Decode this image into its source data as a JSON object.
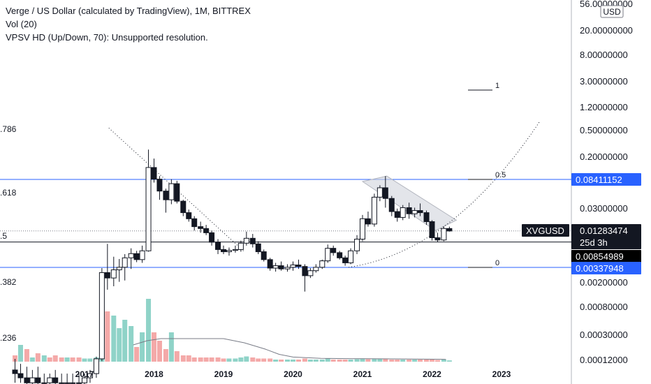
{
  "legend": {
    "title": "Verge / US Dollar (calculated by TradingView), 1M, BITTREX",
    "vol": "Vol (20)",
    "vpsv": "VPSV HD (Up/Down, 70): Unsupported resolution."
  },
  "chart_data": {
    "type": "candlestick",
    "symbol": "XVGUSD",
    "timeframe": "1M",
    "exchange": "BITTREX",
    "currency": "USD",
    "y_scale": "log",
    "ylim": [
      0.00012,
      60
    ],
    "x_ticks": [
      "2017",
      "2018",
      "2019",
      "2020",
      "2021",
      "2022",
      "2023"
    ],
    "y_ticks": [
      "56.00000000",
      "20.00000000",
      "8.00000000",
      "3.00000000",
      "1.20000000",
      "0.50000000",
      "0.20000000",
      "0.03000000",
      "0.00200000",
      "0.00080000",
      "0.00030000",
      "0.00012000"
    ],
    "price_labels": [
      {
        "text": "0.08411152",
        "style": "blue"
      },
      {
        "text": "XVGUSD",
        "style": "dark"
      },
      {
        "text": "0.01283474",
        "style": "dark"
      },
      {
        "text": "25d 3h",
        "style": "dark"
      },
      {
        "text": "0.00854989",
        "style": "black"
      },
      {
        "text": "0.00337948",
        "style": "blue"
      }
    ],
    "fib_left_labels": [
      ".786",
      ".618",
      ".5",
      ".382",
      ".236"
    ],
    "fib_right_labels": [
      "1",
      "0.5",
      "0"
    ],
    "candles": [
      {
        "t": 2016.0,
        "o": 8e-05,
        "h": 0.00012,
        "l": 5e-05,
        "c": 7e-05
      },
      {
        "t": 2016.08,
        "o": 7e-05,
        "h": 0.0001,
        "l": 5e-05,
        "c": 6e-05
      },
      {
        "t": 2016.17,
        "o": 6e-05,
        "h": 9e-05,
        "l": 4e-05,
        "c": 5e-05
      },
      {
        "t": 2016.25,
        "o": 5e-05,
        "h": 8e-05,
        "l": 4e-05,
        "c": 6e-05
      },
      {
        "t": 2016.33,
        "o": 6e-05,
        "h": 9e-05,
        "l": 4e-05,
        "c": 5e-05
      },
      {
        "t": 2016.42,
        "o": 5e-05,
        "h": 7e-05,
        "l": 4e-05,
        "c": 5e-05
      },
      {
        "t": 2016.5,
        "o": 5e-05,
        "h": 7e-05,
        "l": 4e-05,
        "c": 6e-05
      },
      {
        "t": 2016.58,
        "o": 6e-05,
        "h": 8e-05,
        "l": 4e-05,
        "c": 5e-05
      },
      {
        "t": 2016.67,
        "o": 5e-05,
        "h": 7e-05,
        "l": 4e-05,
        "c": 5e-05
      },
      {
        "t": 2016.75,
        "o": 5e-05,
        "h": 7e-05,
        "l": 4e-05,
        "c": 5e-05
      },
      {
        "t": 2016.83,
        "o": 5e-05,
        "h": 7e-05,
        "l": 4e-05,
        "c": 5e-05
      },
      {
        "t": 2016.92,
        "o": 5e-05,
        "h": 7e-05,
        "l": 4e-05,
        "c": 5e-05
      },
      {
        "t": 2017.0,
        "o": 5e-05,
        "h": 7e-05,
        "l": 4e-05,
        "c": 6e-05
      },
      {
        "t": 2017.08,
        "o": 6e-05,
        "h": 8e-05,
        "l": 5e-05,
        "c": 7e-05
      },
      {
        "t": 2017.17,
        "o": 7e-05,
        "h": 0.00013,
        "l": 6e-05,
        "c": 0.00012
      },
      {
        "t": 2017.25,
        "o": 0.00012,
        "h": 0.0033,
        "l": 0.00011,
        "c": 0.0028
      },
      {
        "t": 2017.33,
        "o": 0.0028,
        "h": 0.008,
        "l": 0.0015,
        "c": 0.0023
      },
      {
        "t": 2017.42,
        "o": 0.0023,
        "h": 0.005,
        "l": 0.0017,
        "c": 0.0031
      },
      {
        "t": 2017.5,
        "o": 0.0031,
        "h": 0.0046,
        "l": 0.002,
        "c": 0.0034
      },
      {
        "t": 2017.58,
        "o": 0.0034,
        "h": 0.0055,
        "l": 0.0021,
        "c": 0.0048
      },
      {
        "t": 2017.67,
        "o": 0.0048,
        "h": 0.0068,
        "l": 0.0032,
        "c": 0.0056
      },
      {
        "t": 2017.75,
        "o": 0.0056,
        "h": 0.0062,
        "l": 0.0041,
        "c": 0.0045
      },
      {
        "t": 2017.83,
        "o": 0.0045,
        "h": 0.0075,
        "l": 0.004,
        "c": 0.0062
      },
      {
        "t": 2017.92,
        "o": 0.0062,
        "h": 0.25,
        "l": 0.006,
        "c": 0.13
      },
      {
        "t": 2018.0,
        "o": 0.13,
        "h": 0.18,
        "l": 0.075,
        "c": 0.085
      },
      {
        "t": 2018.08,
        "o": 0.085,
        "h": 0.095,
        "l": 0.04,
        "c": 0.055
      },
      {
        "t": 2018.17,
        "o": 0.055,
        "h": 0.06,
        "l": 0.025,
        "c": 0.04
      },
      {
        "t": 2018.25,
        "o": 0.04,
        "h": 0.085,
        "l": 0.034,
        "c": 0.072
      },
      {
        "t": 2018.33,
        "o": 0.072,
        "h": 0.08,
        "l": 0.035,
        "c": 0.038
      },
      {
        "t": 2018.42,
        "o": 0.038,
        "h": 0.04,
        "l": 0.022,
        "c": 0.025
      },
      {
        "t": 2018.5,
        "o": 0.025,
        "h": 0.028,
        "l": 0.018,
        "c": 0.02
      },
      {
        "t": 2018.58,
        "o": 0.02,
        "h": 0.022,
        "l": 0.013,
        "c": 0.015
      },
      {
        "t": 2018.67,
        "o": 0.015,
        "h": 0.018,
        "l": 0.012,
        "c": 0.014
      },
      {
        "t": 2018.75,
        "o": 0.014,
        "h": 0.016,
        "l": 0.011,
        "c": 0.012
      },
      {
        "t": 2018.83,
        "o": 0.012,
        "h": 0.013,
        "l": 0.0075,
        "c": 0.0085
      },
      {
        "t": 2018.92,
        "o": 0.0085,
        "h": 0.0095,
        "l": 0.0055,
        "c": 0.0065
      },
      {
        "t": 2019.0,
        "o": 0.0065,
        "h": 0.0075,
        "l": 0.0055,
        "c": 0.006
      },
      {
        "t": 2019.08,
        "o": 0.006,
        "h": 0.007,
        "l": 0.0052,
        "c": 0.0063
      },
      {
        "t": 2019.17,
        "o": 0.0063,
        "h": 0.0075,
        "l": 0.0058,
        "c": 0.0065
      },
      {
        "t": 2019.25,
        "o": 0.0065,
        "h": 0.009,
        "l": 0.006,
        "c": 0.0082
      },
      {
        "t": 2019.33,
        "o": 0.0082,
        "h": 0.0125,
        "l": 0.0075,
        "c": 0.0098
      },
      {
        "t": 2019.42,
        "o": 0.0098,
        "h": 0.0115,
        "l": 0.007,
        "c": 0.008
      },
      {
        "t": 2019.5,
        "o": 0.008,
        "h": 0.0088,
        "l": 0.0055,
        "c": 0.006
      },
      {
        "t": 2019.58,
        "o": 0.006,
        "h": 0.0065,
        "l": 0.0042,
        "c": 0.0045
      },
      {
        "t": 2019.67,
        "o": 0.0045,
        "h": 0.0048,
        "l": 0.003,
        "c": 0.0033
      },
      {
        "t": 2019.75,
        "o": 0.0033,
        "h": 0.004,
        "l": 0.0029,
        "c": 0.0036
      },
      {
        "t": 2019.83,
        "o": 0.0036,
        "h": 0.0042,
        "l": 0.003,
        "c": 0.0032
      },
      {
        "t": 2019.92,
        "o": 0.0032,
        "h": 0.0038,
        "l": 0.0029,
        "c": 0.0034
      },
      {
        "t": 2020.0,
        "o": 0.0034,
        "h": 0.0042,
        "l": 0.003,
        "c": 0.0037
      },
      {
        "t": 2020.08,
        "o": 0.0037,
        "h": 0.0045,
        "l": 0.0032,
        "c": 0.0035
      },
      {
        "t": 2020.17,
        "o": 0.0035,
        "h": 0.0038,
        "l": 0.0014,
        "c": 0.0025
      },
      {
        "t": 2020.25,
        "o": 0.0025,
        "h": 0.0033,
        "l": 0.0023,
        "c": 0.003
      },
      {
        "t": 2020.33,
        "o": 0.003,
        "h": 0.0038,
        "l": 0.0028,
        "c": 0.0034
      },
      {
        "t": 2020.42,
        "o": 0.0034,
        "h": 0.0045,
        "l": 0.0032,
        "c": 0.0043
      },
      {
        "t": 2020.5,
        "o": 0.0043,
        "h": 0.0078,
        "l": 0.004,
        "c": 0.0068
      },
      {
        "t": 2020.58,
        "o": 0.0068,
        "h": 0.0075,
        "l": 0.0052,
        "c": 0.0058
      },
      {
        "t": 2020.67,
        "o": 0.0058,
        "h": 0.0062,
        "l": 0.0045,
        "c": 0.0048
      },
      {
        "t": 2020.75,
        "o": 0.0048,
        "h": 0.0052,
        "l": 0.0036,
        "c": 0.004
      },
      {
        "t": 2020.83,
        "o": 0.004,
        "h": 0.0068,
        "l": 0.0038,
        "c": 0.0062
      },
      {
        "t": 2020.92,
        "o": 0.0062,
        "h": 0.011,
        "l": 0.0055,
        "c": 0.0095
      },
      {
        "t": 2021.0,
        "o": 0.0095,
        "h": 0.023,
        "l": 0.0088,
        "c": 0.02
      },
      {
        "t": 2021.08,
        "o": 0.02,
        "h": 0.026,
        "l": 0.015,
        "c": 0.0165
      },
      {
        "t": 2021.17,
        "o": 0.0165,
        "h": 0.05,
        "l": 0.015,
        "c": 0.044
      },
      {
        "t": 2021.25,
        "o": 0.044,
        "h": 0.068,
        "l": 0.038,
        "c": 0.062
      },
      {
        "t": 2021.33,
        "o": 0.062,
        "h": 0.095,
        "l": 0.03,
        "c": 0.042
      },
      {
        "t": 2021.42,
        "o": 0.042,
        "h": 0.046,
        "l": 0.022,
        "c": 0.026
      },
      {
        "t": 2021.5,
        "o": 0.026,
        "h": 0.029,
        "l": 0.018,
        "c": 0.021
      },
      {
        "t": 2021.58,
        "o": 0.021,
        "h": 0.033,
        "l": 0.019,
        "c": 0.03
      },
      {
        "t": 2021.67,
        "o": 0.03,
        "h": 0.036,
        "l": 0.02,
        "c": 0.024
      },
      {
        "t": 2021.75,
        "o": 0.024,
        "h": 0.03,
        "l": 0.021,
        "c": 0.027
      },
      {
        "t": 2021.83,
        "o": 0.027,
        "h": 0.035,
        "l": 0.022,
        "c": 0.025
      },
      {
        "t": 2021.92,
        "o": 0.025,
        "h": 0.027,
        "l": 0.016,
        "c": 0.018
      },
      {
        "t": 2022.0,
        "o": 0.018,
        "h": 0.019,
        "l": 0.009,
        "c": 0.01
      },
      {
        "t": 2022.08,
        "o": 0.01,
        "h": 0.012,
        "l": 0.0085,
        "c": 0.0092
      },
      {
        "t": 2022.17,
        "o": 0.0092,
        "h": 0.015,
        "l": 0.0088,
        "c": 0.014
      },
      {
        "t": 2022.25,
        "o": 0.014,
        "h": 0.015,
        "l": 0.0125,
        "c": 0.0128
      }
    ],
    "volume": [
      {
        "t": 2016.0,
        "v": 3,
        "up": false
      },
      {
        "t": 2016.08,
        "v": 8,
        "up": true
      },
      {
        "t": 2016.17,
        "v": 6,
        "up": false
      },
      {
        "t": 2016.25,
        "v": 2,
        "up": true
      },
      {
        "t": 2016.33,
        "v": 4,
        "up": false
      },
      {
        "t": 2016.42,
        "v": 3,
        "up": true
      },
      {
        "t": 2016.5,
        "v": 2,
        "up": false
      },
      {
        "t": 2016.58,
        "v": 3,
        "up": false
      },
      {
        "t": 2016.67,
        "v": 2,
        "up": false
      },
      {
        "t": 2016.75,
        "v": 2,
        "up": true
      },
      {
        "t": 2016.83,
        "v": 2,
        "up": false
      },
      {
        "t": 2016.92,
        "v": 2,
        "up": false
      },
      {
        "t": 2017.0,
        "v": 1.5,
        "up": true
      },
      {
        "t": 2017.08,
        "v": 1.5,
        "up": true
      },
      {
        "t": 2017.17,
        "v": 2,
        "up": true
      },
      {
        "t": 2017.25,
        "v": 6,
        "up": true
      },
      {
        "t": 2017.33,
        "v": 24,
        "up": false
      },
      {
        "t": 2017.42,
        "v": 22,
        "up": true
      },
      {
        "t": 2017.5,
        "v": 16,
        "up": true
      },
      {
        "t": 2017.58,
        "v": 20,
        "up": true
      },
      {
        "t": 2017.67,
        "v": 17,
        "up": true
      },
      {
        "t": 2017.75,
        "v": 7,
        "up": false
      },
      {
        "t": 2017.83,
        "v": 14,
        "up": true
      },
      {
        "t": 2017.92,
        "v": 30,
        "up": true
      },
      {
        "t": 2018.0,
        "v": 14,
        "up": false
      },
      {
        "t": 2018.08,
        "v": 10,
        "up": false
      },
      {
        "t": 2018.17,
        "v": 6,
        "up": false
      },
      {
        "t": 2018.25,
        "v": 14,
        "up": true
      },
      {
        "t": 2018.33,
        "v": 5,
        "up": false
      },
      {
        "t": 2018.42,
        "v": 3,
        "up": false
      },
      {
        "t": 2018.5,
        "v": 3,
        "up": false
      },
      {
        "t": 2018.58,
        "v": 2,
        "up": false
      },
      {
        "t": 2018.67,
        "v": 2,
        "up": false
      },
      {
        "t": 2018.75,
        "v": 2,
        "up": false
      },
      {
        "t": 2018.83,
        "v": 2,
        "up": false
      },
      {
        "t": 2018.92,
        "v": 2,
        "up": false
      },
      {
        "t": 2019.0,
        "v": 1.5,
        "up": false
      },
      {
        "t": 2019.08,
        "v": 1.5,
        "up": true
      },
      {
        "t": 2019.17,
        "v": 1.5,
        "up": true
      },
      {
        "t": 2019.25,
        "v": 2,
        "up": true
      },
      {
        "t": 2019.33,
        "v": 2.5,
        "up": true
      },
      {
        "t": 2019.42,
        "v": 2,
        "up": false
      },
      {
        "t": 2019.5,
        "v": 1.5,
        "up": false
      },
      {
        "t": 2019.58,
        "v": 1.5,
        "up": false
      },
      {
        "t": 2019.67,
        "v": 1.5,
        "up": false
      },
      {
        "t": 2019.75,
        "v": 1,
        "up": true
      },
      {
        "t": 2019.83,
        "v": 1,
        "up": false
      },
      {
        "t": 2019.92,
        "v": 1,
        "up": true
      },
      {
        "t": 2020.0,
        "v": 1,
        "up": true
      },
      {
        "t": 2020.08,
        "v": 1,
        "up": false
      },
      {
        "t": 2020.17,
        "v": 1.5,
        "up": false
      },
      {
        "t": 2020.25,
        "v": 1,
        "up": true
      },
      {
        "t": 2020.33,
        "v": 1,
        "up": true
      },
      {
        "t": 2020.42,
        "v": 1,
        "up": true
      },
      {
        "t": 2020.5,
        "v": 1.5,
        "up": true
      },
      {
        "t": 2020.58,
        "v": 1,
        "up": false
      },
      {
        "t": 2020.67,
        "v": 1,
        "up": false
      },
      {
        "t": 2020.75,
        "v": 1,
        "up": false
      },
      {
        "t": 2020.83,
        "v": 1,
        "up": true
      },
      {
        "t": 2020.92,
        "v": 1.2,
        "up": true
      },
      {
        "t": 2021.0,
        "v": 1.5,
        "up": true
      },
      {
        "t": 2021.08,
        "v": 1.2,
        "up": false
      },
      {
        "t": 2021.17,
        "v": 1.5,
        "up": true
      },
      {
        "t": 2021.25,
        "v": 1.5,
        "up": true
      },
      {
        "t": 2021.33,
        "v": 1.5,
        "up": false
      },
      {
        "t": 2021.42,
        "v": 1,
        "up": false
      },
      {
        "t": 2021.5,
        "v": 1,
        "up": false
      },
      {
        "t": 2021.58,
        "v": 1,
        "up": true
      },
      {
        "t": 2021.67,
        "v": 1,
        "up": false
      },
      {
        "t": 2021.75,
        "v": 1,
        "up": true
      },
      {
        "t": 2021.83,
        "v": 1,
        "up": false
      },
      {
        "t": 2021.92,
        "v": 1,
        "up": false
      },
      {
        "t": 2022.0,
        "v": 1,
        "up": false
      },
      {
        "t": 2022.08,
        "v": 0.8,
        "up": false
      },
      {
        "t": 2022.17,
        "v": 1,
        "up": true
      },
      {
        "t": 2022.25,
        "v": 0.6,
        "up": true
      }
    ],
    "volume_ma": [
      {
        "t": 2017.7,
        "v": 8
      },
      {
        "t": 2017.9,
        "v": 10
      },
      {
        "t": 2018.1,
        "v": 11
      },
      {
        "t": 2018.4,
        "v": 11
      },
      {
        "t": 2018.8,
        "v": 11
      },
      {
        "t": 2019.0,
        "v": 11
      },
      {
        "t": 2019.3,
        "v": 9
      },
      {
        "t": 2019.6,
        "v": 6
      },
      {
        "t": 2019.8,
        "v": 3.5
      },
      {
        "t": 2020.0,
        "v": 2.2
      },
      {
        "t": 2020.4,
        "v": 1.6
      },
      {
        "t": 2021.0,
        "v": 1.4
      },
      {
        "t": 2021.6,
        "v": 1.3
      },
      {
        "t": 2022.2,
        "v": 1.1
      }
    ],
    "horizontal_lines": [
      {
        "price": 0.08411152,
        "color": "#2962ff",
        "style": "solid"
      },
      {
        "price": 0.00854989,
        "color": "#131722",
        "style": "solid"
      },
      {
        "price": 0.00337948,
        "color": "#2962ff",
        "style": "solid"
      },
      {
        "price": 0.01283474,
        "color": "#787b86",
        "style": "dotted"
      }
    ],
    "colors": {
      "candle_up_body": "#ffffff",
      "candle_down_body": "#131722",
      "candle_outline": "#131722",
      "volume_up": "#8fd3c8",
      "volume_down": "#f4a9a8",
      "label_blue": "#2962ff",
      "label_dark": "#131722",
      "channel_fill": "#d1d4dc"
    }
  }
}
